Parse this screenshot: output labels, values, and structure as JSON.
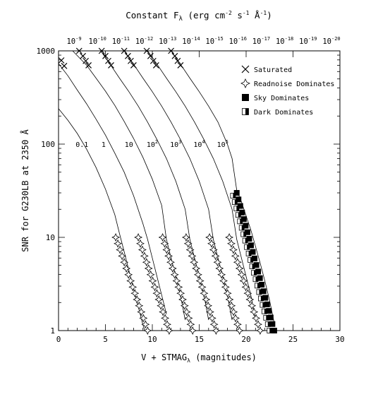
{
  "chart_data": {
    "type": "line",
    "title": "",
    "xlabel": "V + STMAG",
    "xlabel_sub": "λ",
    "xlabel_suffix": " (magnitudes)",
    "ylabel": "SNR for G230LB at 2350 Å",
    "top_label": "Constant F",
    "top_label_sub": "λ",
    "top_label_suffix": " (erg cm",
    "top_label_exp1": "-2",
    "top_label_mid1": " s",
    "top_label_exp2": "-1",
    "top_label_mid2": " Å",
    "top_label_exp3": "-1",
    "top_label_end": ")",
    "xlim": [
      0,
      30
    ],
    "ylim": [
      1,
      1000
    ],
    "yscale": "log",
    "grid": false,
    "legend_position": "top-right",
    "x_ticks": [
      "0",
      "5",
      "10",
      "15",
      "20",
      "25",
      "30"
    ],
    "y_ticks": [
      "1",
      "10",
      "100",
      "1000"
    ],
    "top_ticks": [
      {
        "base": "10",
        "exp": "-9"
      },
      {
        "base": "10",
        "exp": "-10"
      },
      {
        "base": "10",
        "exp": "-11"
      },
      {
        "base": "10",
        "exp": "-12"
      },
      {
        "base": "10",
        "exp": "-13"
      },
      {
        "base": "10",
        "exp": "-14"
      },
      {
        "base": "10",
        "exp": "-15"
      },
      {
        "base": "10",
        "exp": "-16"
      },
      {
        "base": "10",
        "exp": "-17"
      },
      {
        "base": "10",
        "exp": "-18"
      },
      {
        "base": "10",
        "exp": "-19"
      },
      {
        "base": "10",
        "exp": "-20"
      }
    ],
    "legend": [
      {
        "label": "Saturated",
        "marker": "x-cross"
      },
      {
        "label": "Readnoise Dominates",
        "marker": "star"
      },
      {
        "label": "Sky Dominates",
        "marker": "filled-square"
      },
      {
        "label": "Dark Dominates",
        "marker": "half-square"
      }
    ],
    "curve_labels": [
      {
        "text": "0.1",
        "x": 2.5,
        "y": 100
      },
      {
        "text": "1",
        "x": 4.8,
        "y": 100
      },
      {
        "text": "10",
        "x": 7.5,
        "y": 100
      },
      {
        "text": "10",
        "exp": "2",
        "x": 10.0,
        "y": 100
      },
      {
        "text": "10",
        "exp": "3",
        "x": 12.5,
        "y": 100
      },
      {
        "text": "10",
        "exp": "4",
        "x": 15.0,
        "y": 100
      },
      {
        "text": "10",
        "exp": "5",
        "x": 17.5,
        "y": 100
      }
    ],
    "series": [
      {
        "name": "0.1",
        "x": [
          0.0,
          1.0,
          2.0,
          3.0,
          4.0,
          5.0,
          6.0,
          6.5,
          7.0,
          7.5,
          8.0,
          8.5,
          9.0,
          9.5
        ],
        "y": [
          240,
          180,
          130,
          88,
          56,
          33,
          17.5,
          11,
          7,
          4.4,
          2.8,
          1.8,
          1.15,
          0.8
        ]
      },
      {
        "name": "1",
        "x": [
          0.0,
          1.0,
          2.0,
          3.0,
          4.0,
          5.0,
          6.0,
          7.0,
          8.0,
          9.0,
          9.5,
          10.0,
          10.5,
          11.0,
          11.5
        ],
        "y": [
          730,
          540,
          380,
          270,
          185,
          125,
          80,
          50,
          28,
          14,
          9.5,
          6,
          3.8,
          2.4,
          1.5
        ]
      },
      {
        "name": "10",
        "x": [
          1.5,
          3.0,
          4.0,
          5.0,
          6.0,
          7.0,
          8.0,
          9.0,
          10.0,
          11.0,
          11.5,
          12.0,
          12.5,
          13.0,
          13.5
        ],
        "y": [
          1000,
          700,
          510,
          370,
          260,
          175,
          115,
          72,
          42,
          22,
          9.5,
          6,
          3.8,
          2.4,
          1.3
        ]
      },
      {
        "name": "100",
        "x": [
          4.5,
          5.5,
          6.5,
          7.5,
          8.5,
          9.5,
          10.5,
          11.5,
          12.5,
          13.5,
          14.0,
          14.5,
          15.0,
          15.5,
          16.0
        ],
        "y": [
          1000,
          720,
          510,
          365,
          255,
          172,
          112,
          70,
          40,
          20,
          9.5,
          6,
          3.8,
          2.4,
          1.3
        ]
      },
      {
        "name": "1000",
        "x": [
          7.0,
          8.0,
          9.0,
          10.0,
          11.0,
          12.0,
          13.0,
          14.0,
          15.0,
          16.0,
          16.5,
          17.0,
          17.5,
          18.0,
          18.5
        ],
        "y": [
          1000,
          720,
          510,
          365,
          255,
          172,
          112,
          70,
          40,
          20,
          9.5,
          6,
          3.8,
          2.4,
          1.3
        ]
      },
      {
        "name": "10000",
        "x": [
          9.5,
          10.5,
          11.5,
          12.5,
          13.5,
          14.5,
          15.5,
          16.5,
          17.5,
          18.5,
          19.0,
          19.5,
          20.0,
          20.5,
          21.0
        ],
        "y": [
          1000,
          720,
          510,
          365,
          255,
          172,
          112,
          70,
          40,
          20,
          9.5,
          6,
          3.8,
          2.4,
          1.3
        ]
      },
      {
        "name": "100000",
        "x": [
          12.0,
          13.0,
          14.0,
          15.0,
          16.0,
          17.0,
          18.0,
          18.5,
          19.0,
          19.5,
          20.0,
          20.5,
          21.0,
          21.5,
          22.0,
          22.5,
          23.0
        ],
        "y": [
          1000,
          720,
          510,
          365,
          255,
          172,
          100,
          70,
          32,
          24,
          17,
          12,
          8,
          5.3,
          3.4,
          2.1,
          1.2
        ]
      }
    ],
    "markers": {
      "saturated": [
        {
          "x": 0.3,
          "y": 790
        },
        {
          "x": 0.6,
          "y": 690
        },
        {
          "x": 2.2,
          "y": 1000
        },
        {
          "x": 2.6,
          "y": 880
        },
        {
          "x": 2.9,
          "y": 780
        },
        {
          "x": 3.2,
          "y": 700
        },
        {
          "x": 4.6,
          "y": 1000
        },
        {
          "x": 5.0,
          "y": 880
        },
        {
          "x": 5.3,
          "y": 780
        },
        {
          "x": 5.6,
          "y": 700
        },
        {
          "x": 7.0,
          "y": 1000
        },
        {
          "x": 7.4,
          "y": 880
        },
        {
          "x": 7.7,
          "y": 780
        },
        {
          "x": 8.0,
          "y": 700
        },
        {
          "x": 9.4,
          "y": 1000
        },
        {
          "x": 9.8,
          "y": 880
        },
        {
          "x": 10.1,
          "y": 780
        },
        {
          "x": 10.4,
          "y": 700
        },
        {
          "x": 12.0,
          "y": 1000
        },
        {
          "x": 12.4,
          "y": 880
        },
        {
          "x": 12.7,
          "y": 780
        },
        {
          "x": 13.0,
          "y": 700
        }
      ],
      "readnoise_bands": [
        {
          "x_start": 6.1,
          "x_end": 9.5
        },
        {
          "x_start": 8.5,
          "x_end": 11.8
        },
        {
          "x_start": 11.1,
          "x_end": 14.3
        },
        {
          "x_start": 13.6,
          "x_end": 16.8
        },
        {
          "x_start": 16.1,
          "x_end": 19.3
        },
        {
          "x_start": 18.2,
          "x_end": 21.5
        }
      ],
      "sky_band": {
        "x_start": 19.0,
        "x_end": 23.0,
        "y_start": 30
      },
      "dark_band": {
        "x_start": 18.6,
        "x_end": 22.5,
        "y_start": 28
      }
    }
  }
}
